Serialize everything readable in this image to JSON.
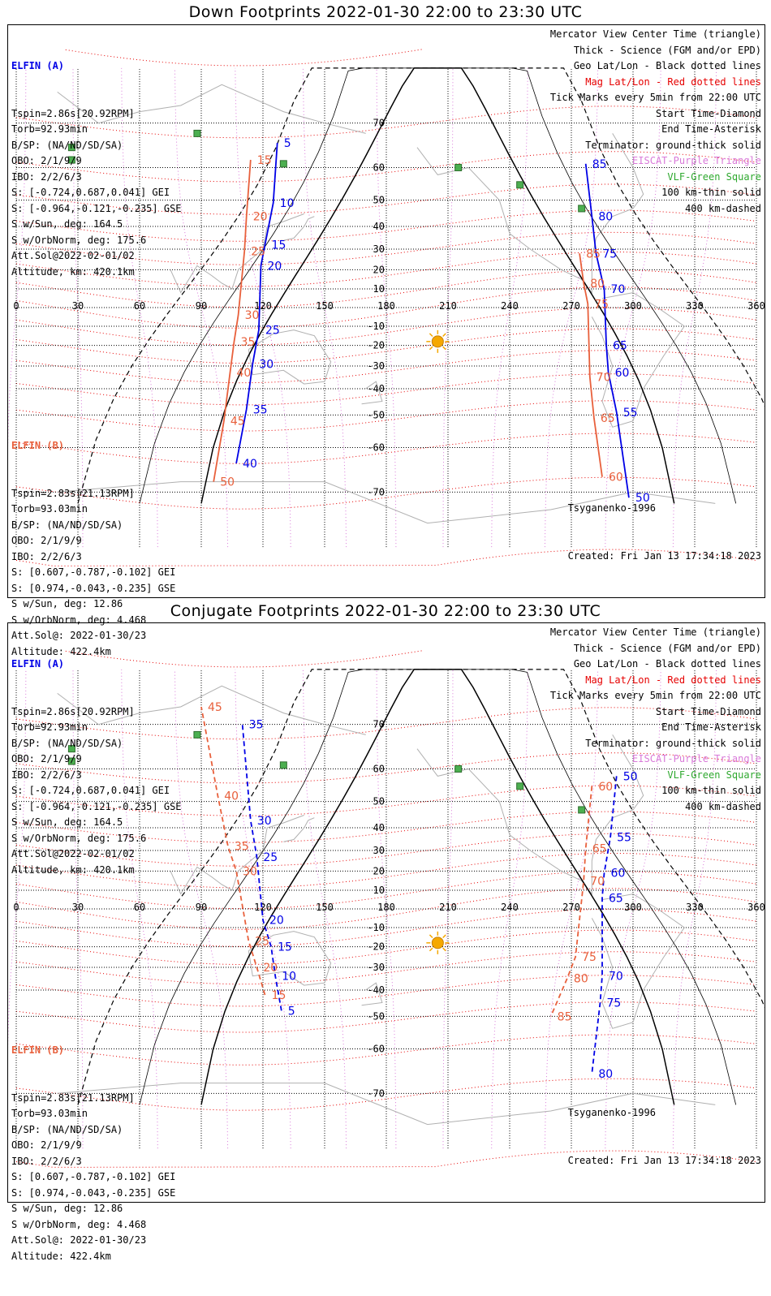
{
  "panels": [
    {
      "id": "down",
      "title": "Down Footprints 2022-01-30 22:00 to 23:30 UTC",
      "elfin_a": {
        "name": "ELFIN (A)",
        "lines": [
          "Tspin=2.86s[20.92RPM]",
          "Torb=92.93min",
          "B/SP: (NA/ND/SD/SA)",
          "OBO: 2/1/9/9",
          "IBO: 2/2/6/3",
          "S: [-0.724,0.687,0.041] GEI",
          "S: [-0.964,-0.121,-0.235] GSE",
          "S w/Sun, deg: 164.5",
          "S w/OrbNorm, deg: 175.6",
          "Att.Sol@2022-02-01/02",
          "Altitude, km: 420.1km"
        ]
      },
      "elfin_b": {
        "name": "ELFIN (B)",
        "lines": [
          "Tspin=2.83s[21.13RPM]",
          "Torb=93.03min",
          "B/SP: (NA/ND/SD/SA)",
          "OBO: 2/1/9/9",
          "IBO: 2/2/6/3",
          "S: [0.607,-0.787,-0.102] GEI",
          "S: [0.974,-0.043,-0.235] GSE",
          "S w/Sun, deg: 12.86",
          "S w/OrbNorm, deg: 4.468",
          "Att.Sol@: 2022-01-30/23",
          "Altitude: 422.4km"
        ]
      },
      "model": "Tsyganenko-1996",
      "created": "Created: Fri Jan 13 17:34:18 2023"
    },
    {
      "id": "conjugate",
      "title": "Conjugate Footprints 2022-01-30 22:00 to 23:30 UTC",
      "elfin_a": {
        "name": "ELFIN (A)",
        "lines": [
          "Tspin=2.86s[20.92RPM]",
          "Torb=92.93min",
          "B/SP: (NA/ND/SD/SA)",
          "OBO: 2/1/9/9",
          "IBO: 2/2/6/3",
          "S: [-0.724,0.687,0.041] GEI",
          "S: [-0.964,-0.121,-0.235] GSE",
          "S w/Sun, deg: 164.5",
          "S w/OrbNorm, deg: 175.6",
          "Att.Sol@2022-02-01/02",
          "Altitude, km: 420.1km"
        ]
      },
      "elfin_b": {
        "name": "ELFIN (B)",
        "lines": [
          "Tspin=2.83s[21.13RPM]",
          "Torb=93.03min",
          "B/SP: (NA/ND/SD/SA)",
          "OBO: 2/1/9/9",
          "IBO: 2/2/6/3",
          "S: [0.607,-0.787,-0.102] GEI",
          "S: [0.974,-0.043,-0.235] GSE",
          "S w/Sun, deg: 12.86",
          "S w/OrbNorm, deg: 4.468",
          "Att.Sol@: 2022-01-30/23",
          "Altitude: 422.4km"
        ]
      },
      "model": "Tsyganenko-1996",
      "created": "Created: Fri Jan 13 17:34:18 2023"
    }
  ],
  "legend": [
    {
      "text": "Mercator View Center Time (triangle)",
      "color": "#000000"
    },
    {
      "text": "Thick - Science (FGM and/or EPD)",
      "color": "#000000"
    },
    {
      "text": "Geo Lat/Lon - Black dotted lines",
      "color": "#000000"
    },
    {
      "text": "Mag Lat/Lon - Red dotted lines",
      "color": "#e60000"
    },
    {
      "text": "Tick Marks every 5min from 22:00 UTC",
      "color": "#000000"
    },
    {
      "text": "Start Time-Diamond",
      "color": "#000000"
    },
    {
      "text": "End Time-Asterisk",
      "color": "#000000"
    },
    {
      "text": "Terminator: ground-thick solid",
      "color": "#000000"
    },
    {
      "text": "EISCAT-Purple Triangle",
      "color": "#d97ad9"
    },
    {
      "text": "VLF-Green Square",
      "color": "#2ea82e"
    },
    {
      "text": "100 km-thin solid",
      "color": "#000000"
    },
    {
      "text": "400 km-dashed",
      "color": "#000000"
    }
  ],
  "colors": {
    "elfin_a": "#0000e6",
    "elfin_b": "#e8603c",
    "geo_grid": "#000000",
    "mag_grid": "#e60000",
    "eiscat": "#d97ad9",
    "vlf": "#4caf50",
    "sun": "#f5a800",
    "coast": "#b0b0b0"
  },
  "axes": {
    "lon_labels": [
      "0",
      "30",
      "60",
      "90",
      "120",
      "150",
      "180",
      "210",
      "240",
      "270",
      "300",
      "330",
      "360"
    ],
    "lat_labels": [
      "70",
      "60",
      "50",
      "40",
      "30",
      "20",
      "10",
      "-10",
      "-20",
      "-30",
      "-40",
      "-50",
      "-60",
      "-70"
    ]
  },
  "chart_data": [
    {
      "type": "map",
      "projection": "mercator",
      "lon_range": [
        0,
        360
      ],
      "lat_range": [
        -78,
        78
      ],
      "sun": {
        "lon": 205,
        "lat": -18
      },
      "vlf_stations": [
        [
          88,
          68
        ],
        [
          27,
          65
        ],
        [
          27,
          62
        ],
        [
          130,
          61
        ],
        [
          215,
          60
        ],
        [
          245,
          55
        ],
        [
          275,
          47
        ]
      ],
      "elfin_a_down": {
        "ticks": [
          {
            "t": 5,
            "lon": 127,
            "lat": 66
          },
          {
            "t": 10,
            "lon": 125,
            "lat": 49
          },
          {
            "t": 15,
            "lon": 121,
            "lat": 32
          },
          {
            "t": 20,
            "lon": 119,
            "lat": 22
          },
          {
            "t": 25,
            "lon": 118,
            "lat": -12
          },
          {
            "t": 30,
            "lon": 115,
            "lat": -29
          },
          {
            "t": 35,
            "lon": 112,
            "lat": -48
          },
          {
            "t": 40,
            "lon": 107,
            "lat": -64
          },
          {
            "t": 50,
            "lon": 298,
            "lat": -71
          },
          {
            "t": 55,
            "lon": 292,
            "lat": -49
          },
          {
            "t": 60,
            "lon": 288,
            "lat": -33
          },
          {
            "t": 65,
            "lon": 287,
            "lat": -20
          },
          {
            "t": 70,
            "lon": 286,
            "lat": 10
          },
          {
            "t": 75,
            "lon": 282,
            "lat": 28
          },
          {
            "t": 80,
            "lon": 280,
            "lat": 44
          },
          {
            "t": 85,
            "lon": 277,
            "lat": 61
          }
        ]
      },
      "elfin_b_down": {
        "ticks": [
          {
            "t": 15,
            "lon": 114,
            "lat": 62
          },
          {
            "t": 20,
            "lon": 112,
            "lat": 44
          },
          {
            "t": 25,
            "lon": 111,
            "lat": 29
          },
          {
            "t": 30,
            "lon": 108,
            "lat": -4
          },
          {
            "t": 35,
            "lon": 106,
            "lat": -18
          },
          {
            "t": 40,
            "lon": 104,
            "lat": -33
          },
          {
            "t": 45,
            "lon": 101,
            "lat": -52
          },
          {
            "t": 50,
            "lon": 96,
            "lat": -68
          },
          {
            "t": 60,
            "lon": 285,
            "lat": -67
          },
          {
            "t": 65,
            "lon": 281,
            "lat": -51
          },
          {
            "t": 70,
            "lon": 279,
            "lat": -35
          },
          {
            "t": 75,
            "lon": 278,
            "lat": 2
          },
          {
            "t": 80,
            "lon": 276,
            "lat": 13
          },
          {
            "t": 85,
            "lon": 274,
            "lat": 28
          }
        ]
      }
    },
    {
      "type": "map",
      "projection": "mercator",
      "lon_range": [
        0,
        360
      ],
      "lat_range": [
        -78,
        78
      ],
      "sun": {
        "lon": 205,
        "lat": -18
      },
      "elfin_a_conjugate": {
        "ticks": [
          {
            "t": 5,
            "lon": 129,
            "lat": -48
          },
          {
            "t": 10,
            "lon": 126,
            "lat": -34
          },
          {
            "t": 15,
            "lon": 124,
            "lat": -20
          },
          {
            "t": 20,
            "lon": 120,
            "lat": -6
          },
          {
            "t": 25,
            "lon": 117,
            "lat": 27
          },
          {
            "t": 30,
            "lon": 114,
            "lat": 43
          },
          {
            "t": 35,
            "lon": 110,
            "lat": 70
          },
          {
            "t": 50,
            "lon": 292,
            "lat": 58
          },
          {
            "t": 55,
            "lon": 289,
            "lat": 36
          },
          {
            "t": 60,
            "lon": 286,
            "lat": 19
          },
          {
            "t": 65,
            "lon": 285,
            "lat": 6
          },
          {
            "t": 70,
            "lon": 285,
            "lat": -34
          },
          {
            "t": 75,
            "lon": 284,
            "lat": -45
          },
          {
            "t": 80,
            "lon": 280,
            "lat": -66
          }
        ]
      },
      "elfin_b_conjugate": {
        "ticks": [
          {
            "t": 15,
            "lon": 121,
            "lat": -42
          },
          {
            "t": 20,
            "lon": 117,
            "lat": -30
          },
          {
            "t": 25,
            "lon": 113,
            "lat": -17
          },
          {
            "t": 30,
            "lon": 107,
            "lat": 20
          },
          {
            "t": 35,
            "lon": 103,
            "lat": 32
          },
          {
            "t": 40,
            "lon": 98,
            "lat": 52
          },
          {
            "t": 45,
            "lon": 90,
            "lat": 73
          },
          {
            "t": 60,
            "lon": 280,
            "lat": 55
          },
          {
            "t": 65,
            "lon": 277,
            "lat": 31
          },
          {
            "t": 70,
            "lon": 276,
            "lat": 15
          },
          {
            "t": 75,
            "lon": 272,
            "lat": -25
          },
          {
            "t": 80,
            "lon": 268,
            "lat": -35
          },
          {
            "t": 85,
            "lon": 260,
            "lat": -50
          }
        ]
      }
    }
  ]
}
